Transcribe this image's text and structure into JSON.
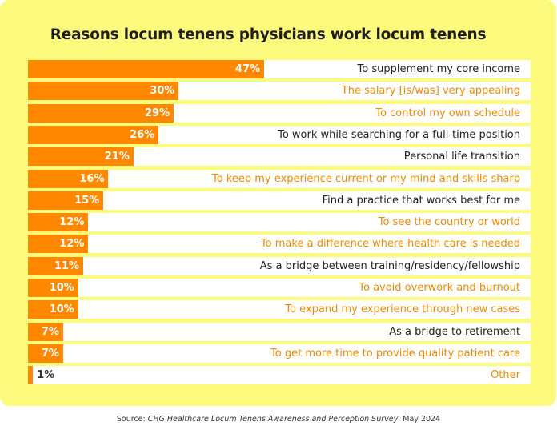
{
  "chart_data": {
    "type": "bar",
    "orientation": "horizontal",
    "title": "Reasons locum tenens physicians work locum tenens",
    "xlim": [
      0,
      100
    ],
    "categories": [
      "To supplement my core income",
      "The salary [is/was] very appealing",
      "To control my own schedule",
      "To work while searching for a full-time position",
      "Personal life transition",
      "To keep my experience current or my mind and skills sharp",
      "Find a practice that works best for me",
      "To see the country or world",
      "To make a difference where health care is needed",
      "As a bridge between training/residency/fellowship",
      "To avoid overwork and burnout",
      "To expand my experience through new cases",
      "As a bridge to retirement",
      "To get more time to provide quality patient care",
      "Other"
    ],
    "values": [
      47,
      30,
      29,
      26,
      21,
      16,
      15,
      12,
      12,
      11,
      10,
      10,
      7,
      7,
      1
    ],
    "value_labels": [
      "47%",
      "30%",
      "29%",
      "26%",
      "21%",
      "16%",
      "15%",
      "12%",
      "12%",
      "11%",
      "10%",
      "10%",
      "7%",
      "7%",
      "1%"
    ],
    "label_colors": [
      "#222222",
      "#f08a00",
      "#f08a00",
      "#222222",
      "#222222",
      "#f08a00",
      "#222222",
      "#f08a00",
      "#f08a00",
      "#222222",
      "#f08a00",
      "#f08a00",
      "#222222",
      "#f08a00",
      "#f08a00"
    ],
    "bar_color": "#ff8800",
    "background_color": "#fdfb7d",
    "grid": false,
    "legend": "none"
  },
  "source": {
    "prefix": "Source: ",
    "title": "CHG Healthcare Locum Tenens Awareness and Perception Survey",
    "suffix": ", May 2024"
  }
}
